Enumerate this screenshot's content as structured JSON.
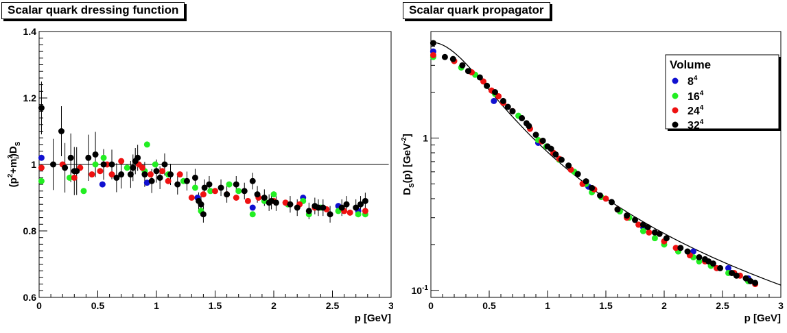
{
  "chart_data": [
    {
      "type": "scatter",
      "title": "Scalar quark dressing function",
      "xlabel": "p [GeV]",
      "ylabel": "(p²+mᵢ²)Dₛ",
      "ylabel_parts": {
        "a": "(p",
        "b": "2",
        "c": "+m",
        "d": "2",
        "e": "i",
        "f": ")D",
        "g": "S"
      },
      "xlim": [
        0,
        3
      ],
      "ylim": [
        0.6,
        1.4
      ],
      "x_ticks": [
        "0",
        "0.5",
        "1",
        "1.5",
        "2",
        "2.5",
        "3"
      ],
      "y_ticks": [
        "0.6",
        "0.8",
        "1",
        "1.2",
        "1.4"
      ],
      "reference_line": {
        "y": 1.0
      },
      "series": [
        {
          "name": "8⁴",
          "color": "#1010d0",
          "points": [
            [
              0.02,
              1.02
            ],
            [
              0.54,
              0.94
            ],
            [
              0.92,
              0.945
            ],
            [
              1.35,
              0.9
            ],
            [
              1.82,
              0.87
            ],
            [
              2.25,
              0.9
            ],
            [
              2.55,
              0.875
            ],
            [
              2.72,
              0.86
            ]
          ]
        },
        {
          "name": "16⁴",
          "color": "#22ee22",
          "points": [
            [
              0.02,
              0.95
            ],
            [
              0.26,
              0.96
            ],
            [
              0.38,
              0.92
            ],
            [
              0.48,
              1.0
            ],
            [
              0.55,
              1.02
            ],
            [
              0.75,
              0.99
            ],
            [
              0.9,
              0.98
            ],
            [
              0.92,
              1.06
            ],
            [
              0.99,
              1.0
            ],
            [
              1.1,
              0.97
            ],
            [
              1.23,
              0.95
            ],
            [
              1.33,
              0.93
            ],
            [
              1.38,
              0.86
            ],
            [
              1.46,
              0.92
            ],
            [
              1.62,
              0.94
            ],
            [
              1.7,
              0.92
            ],
            [
              1.82,
              0.85
            ],
            [
              1.92,
              0.89
            ],
            [
              2.0,
              0.91
            ],
            [
              2.12,
              0.88
            ],
            [
              2.25,
              0.89
            ],
            [
              2.3,
              0.85
            ],
            [
              2.4,
              0.87
            ],
            [
              2.55,
              0.86
            ],
            [
              2.72,
              0.85
            ],
            [
              2.78,
              0.85
            ]
          ]
        },
        {
          "name": "24⁴",
          "color": "#ee1111",
          "points": [
            [
              0.02,
              0.99
            ],
            [
              0.2,
              1.0
            ],
            [
              0.3,
              0.96
            ],
            [
              0.35,
              0.99
            ],
            [
              0.45,
              0.97
            ],
            [
              0.52,
              0.98
            ],
            [
              0.58,
              1.0
            ],
            [
              0.62,
              0.97
            ],
            [
              0.7,
              1.01
            ],
            [
              0.85,
              1.0
            ],
            [
              0.88,
              0.99
            ],
            [
              0.95,
              0.97
            ],
            [
              1.05,
              0.98
            ],
            [
              1.1,
              0.95
            ],
            [
              1.2,
              0.97
            ],
            [
              1.3,
              0.9
            ],
            [
              1.4,
              0.91
            ],
            [
              1.5,
              0.92
            ],
            [
              1.6,
              0.91
            ],
            [
              1.68,
              0.9
            ],
            [
              1.78,
              0.89
            ],
            [
              1.87,
              0.9
            ],
            [
              2.0,
              0.89
            ],
            [
              2.1,
              0.885
            ],
            [
              2.22,
              0.88
            ],
            [
              2.35,
              0.87
            ],
            [
              2.45,
              0.865
            ],
            [
              2.6,
              0.86
            ],
            [
              2.65,
              0.855
            ],
            [
              2.78,
              0.86
            ]
          ]
        },
        {
          "name": "32⁴",
          "color": "#000000",
          "points": [
            [
              0.02,
              1.17
            ],
            [
              0.12,
              1.0
            ],
            [
              0.19,
              1.1
            ],
            [
              0.22,
              0.99
            ],
            [
              0.27,
              1.02
            ],
            [
              0.3,
              0.98
            ],
            [
              0.32,
              0.98
            ],
            [
              0.42,
              1.02
            ],
            [
              0.48,
              1.03
            ],
            [
              0.55,
              1.0
            ],
            [
              0.62,
              1.0
            ],
            [
              0.66,
              0.96
            ],
            [
              0.7,
              0.97
            ],
            [
              0.78,
              0.97
            ],
            [
              0.8,
              0.99
            ],
            [
              0.82,
              1.01
            ],
            [
              0.84,
              1.02
            ],
            [
              0.9,
              0.97
            ],
            [
              0.96,
              0.95
            ],
            [
              1.0,
              0.98
            ],
            [
              1.03,
              0.96
            ],
            [
              1.07,
              1.0
            ],
            [
              1.12,
              0.97
            ],
            [
              1.18,
              0.94
            ],
            [
              1.26,
              0.95
            ],
            [
              1.33,
              0.96
            ],
            [
              1.36,
              0.89
            ],
            [
              1.38,
              0.88
            ],
            [
              1.4,
              0.85
            ],
            [
              1.41,
              0.93
            ],
            [
              1.45,
              0.94
            ],
            [
              1.55,
              0.93
            ],
            [
              1.6,
              0.91
            ],
            [
              1.68,
              0.94
            ],
            [
              1.75,
              0.92
            ],
            [
              1.82,
              0.95
            ],
            [
              1.86,
              0.91
            ],
            [
              1.92,
              0.9
            ],
            [
              1.96,
              0.885
            ],
            [
              1.98,
              0.89
            ],
            [
              2.02,
              0.885
            ],
            [
              2.14,
              0.88
            ],
            [
              2.2,
              0.87
            ],
            [
              2.3,
              0.86
            ],
            [
              2.35,
              0.875
            ],
            [
              2.38,
              0.87
            ],
            [
              2.42,
              0.87
            ],
            [
              2.48,
              0.85
            ],
            [
              2.58,
              0.87
            ],
            [
              2.62,
              0.88
            ],
            [
              2.7,
              0.87
            ],
            [
              2.74,
              0.88
            ],
            [
              2.78,
              0.89
            ]
          ]
        }
      ]
    },
    {
      "type": "scatter",
      "title": "Scalar quark propagator",
      "xlabel": "p [GeV]",
      "ylabel": "Dₛ(p) [GeV⁻²]",
      "ylabel_parts": {
        "a": "D",
        "b": "S",
        "c": "(p) [GeV",
        "d": "-2",
        "e": "]"
      },
      "xlim": [
        0,
        3
      ],
      "ylim": [
        0.09,
        5.0
      ],
      "yscale": "log",
      "x_ticks": [
        "0",
        "0.5",
        "1",
        "1.5",
        "2",
        "2.5",
        "3"
      ],
      "y_ticks": [
        {
          "base": "1",
          "exp": ""
        },
        {
          "base": "10",
          "exp": "-1"
        }
      ],
      "y_tick_values": [
        1,
        0.1
      ],
      "reference_curve": {
        "label": "",
        "form": "1/(p^2 + m^2)"
      },
      "legend": {
        "title": "Volume",
        "position": "top-right",
        "entries": [
          {
            "base": "8",
            "exp": "4",
            "color": "#1010d0"
          },
          {
            "base": "16",
            "exp": "4",
            "color": "#22ee22"
          },
          {
            "base": "24",
            "exp": "4",
            "color": "#ee1111"
          },
          {
            "base": "32",
            "exp": "4",
            "color": "#000000"
          }
        ]
      },
      "series": [
        {
          "name": "8⁴",
          "color": "#1010d0",
          "points": [
            [
              0.02,
              3.7
            ],
            [
              0.54,
              1.75
            ],
            [
              0.92,
              0.93
            ],
            [
              1.35,
              0.48
            ],
            [
              1.82,
              0.26
            ],
            [
              2.25,
              0.18
            ],
            [
              2.55,
              0.14
            ],
            [
              2.72,
              0.12
            ]
          ]
        },
        {
          "name": "16⁴",
          "color": "#22ee22",
          "points": [
            [
              0.02,
              3.4
            ],
            [
              0.26,
              2.9
            ],
            [
              0.38,
              2.6
            ],
            [
              0.48,
              2.2
            ],
            [
              0.55,
              1.95
            ],
            [
              0.75,
              1.4
            ],
            [
              0.92,
              0.97
            ],
            [
              0.99,
              0.88
            ],
            [
              1.1,
              0.72
            ],
            [
              1.23,
              0.6
            ],
            [
              1.33,
              0.5
            ],
            [
              1.38,
              0.44
            ],
            [
              1.46,
              0.41
            ],
            [
              1.62,
              0.33
            ],
            [
              1.7,
              0.3
            ],
            [
              1.82,
              0.245
            ],
            [
              1.92,
              0.22
            ],
            [
              2.0,
              0.2
            ],
            [
              2.12,
              0.18
            ],
            [
              2.25,
              0.165
            ],
            [
              2.3,
              0.155
            ],
            [
              2.4,
              0.145
            ],
            [
              2.55,
              0.13
            ],
            [
              2.72,
              0.115
            ]
          ]
        },
        {
          "name": "24⁴",
          "color": "#ee1111",
          "points": [
            [
              0.02,
              3.5
            ],
            [
              0.2,
              3.2
            ],
            [
              0.35,
              2.7
            ],
            [
              0.45,
              2.35
            ],
            [
              0.52,
              2.05
            ],
            [
              0.58,
              1.88
            ],
            [
              0.62,
              1.7
            ],
            [
              0.7,
              1.5
            ],
            [
              0.85,
              1.15
            ],
            [
              0.95,
              0.95
            ],
            [
              1.05,
              0.8
            ],
            [
              1.1,
              0.73
            ],
            [
              1.2,
              0.62
            ],
            [
              1.3,
              0.5
            ],
            [
              1.4,
              0.46
            ],
            [
              1.5,
              0.4
            ],
            [
              1.6,
              0.34
            ],
            [
              1.68,
              0.3
            ],
            [
              1.78,
              0.27
            ],
            [
              1.87,
              0.24
            ],
            [
              2.0,
              0.21
            ],
            [
              2.1,
              0.19
            ],
            [
              2.22,
              0.17
            ],
            [
              2.35,
              0.155
            ],
            [
              2.45,
              0.14
            ],
            [
              2.6,
              0.13
            ],
            [
              2.65,
              0.125
            ],
            [
              2.78,
              0.11
            ]
          ]
        },
        {
          "name": "32⁴",
          "color": "#000000",
          "points": [
            [
              0.02,
              4.2
            ],
            [
              0.12,
              3.4
            ],
            [
              0.19,
              3.3
            ],
            [
              0.27,
              3.0
            ],
            [
              0.32,
              2.75
            ],
            [
              0.42,
              2.5
            ],
            [
              0.48,
              2.2
            ],
            [
              0.55,
              2.0
            ],
            [
              0.62,
              1.75
            ],
            [
              0.66,
              1.6
            ],
            [
              0.7,
              1.5
            ],
            [
              0.78,
              1.35
            ],
            [
              0.82,
              1.25
            ],
            [
              0.84,
              1.2
            ],
            [
              0.9,
              1.05
            ],
            [
              0.96,
              0.96
            ],
            [
              1.0,
              0.88
            ],
            [
              1.03,
              0.85
            ],
            [
              1.07,
              0.78
            ],
            [
              1.12,
              0.72
            ],
            [
              1.18,
              0.66
            ],
            [
              1.26,
              0.58
            ],
            [
              1.33,
              0.52
            ],
            [
              1.38,
              0.47
            ],
            [
              1.45,
              0.42
            ],
            [
              1.55,
              0.38
            ],
            [
              1.6,
              0.34
            ],
            [
              1.68,
              0.31
            ],
            [
              1.75,
              0.29
            ],
            [
              1.82,
              0.27
            ],
            [
              1.86,
              0.26
            ],
            [
              1.92,
              0.24
            ],
            [
              1.96,
              0.235
            ],
            [
              2.02,
              0.22
            ],
            [
              2.14,
              0.19
            ],
            [
              2.2,
              0.18
            ],
            [
              2.3,
              0.165
            ],
            [
              2.35,
              0.16
            ],
            [
              2.38,
              0.155
            ],
            [
              2.42,
              0.15
            ],
            [
              2.48,
              0.14
            ],
            [
              2.58,
              0.13
            ],
            [
              2.62,
              0.125
            ],
            [
              2.7,
              0.12
            ],
            [
              2.74,
              0.115
            ],
            [
              2.78,
              0.112
            ]
          ]
        }
      ]
    }
  ]
}
